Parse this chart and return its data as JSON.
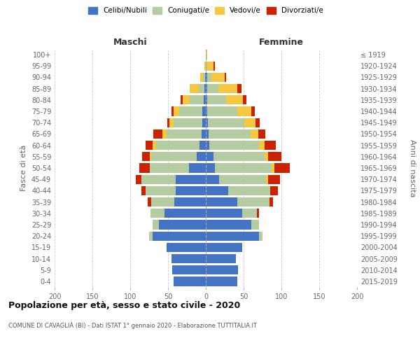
{
  "age_groups": [
    "0-4",
    "5-9",
    "10-14",
    "15-19",
    "20-24",
    "25-29",
    "30-34",
    "35-39",
    "40-44",
    "45-49",
    "50-54",
    "55-59",
    "60-64",
    "65-69",
    "70-74",
    "75-79",
    "80-84",
    "85-89",
    "90-94",
    "95-99",
    "100+"
  ],
  "birth_years": [
    "2015-2019",
    "2010-2014",
    "2005-2009",
    "2000-2004",
    "1995-1999",
    "1990-1994",
    "1985-1989",
    "1980-1984",
    "1975-1979",
    "1970-1974",
    "1965-1969",
    "1960-1964",
    "1955-1959",
    "1950-1954",
    "1945-1949",
    "1940-1944",
    "1935-1939",
    "1930-1934",
    "1925-1929",
    "1920-1924",
    "≤ 1919"
  ],
  "colors": {
    "celibi": "#4472c4",
    "coniugati": "#b5cca0",
    "vedovi": "#f5c842",
    "divorziati": "#cc2200"
  },
  "maschi": {
    "celibi": [
      43,
      44,
      45,
      52,
      70,
      62,
      55,
      42,
      40,
      40,
      22,
      12,
      8,
      6,
      5,
      5,
      3,
      2,
      1,
      0,
      0
    ],
    "coniugati": [
      0,
      0,
      0,
      0,
      5,
      8,
      18,
      30,
      40,
      45,
      52,
      60,
      58,
      46,
      38,
      30,
      18,
      7,
      3,
      0,
      0
    ],
    "vedovi": [
      0,
      0,
      0,
      0,
      0,
      0,
      0,
      0,
      0,
      0,
      0,
      2,
      4,
      5,
      5,
      8,
      10,
      12,
      3,
      2,
      0
    ],
    "divorziati": [
      0,
      0,
      0,
      0,
      0,
      0,
      0,
      5,
      5,
      8,
      14,
      10,
      10,
      12,
      3,
      2,
      2,
      0,
      0,
      0,
      0
    ]
  },
  "femmine": {
    "celibi": [
      42,
      43,
      40,
      48,
      70,
      60,
      48,
      42,
      30,
      18,
      12,
      10,
      5,
      4,
      3,
      2,
      2,
      2,
      2,
      0,
      0
    ],
    "coniugati": [
      0,
      0,
      0,
      0,
      5,
      10,
      20,
      42,
      55,
      62,
      75,
      68,
      65,
      55,
      48,
      40,
      25,
      15,
      5,
      2,
      0
    ],
    "vedovi": [
      0,
      0,
      0,
      0,
      0,
      0,
      0,
      0,
      0,
      2,
      4,
      4,
      8,
      10,
      15,
      18,
      22,
      25,
      18,
      8,
      2
    ],
    "divorziati": [
      0,
      0,
      0,
      0,
      0,
      0,
      2,
      5,
      10,
      16,
      20,
      18,
      15,
      10,
      5,
      5,
      5,
      5,
      2,
      2,
      0
    ]
  },
  "title": "Popolazione per età, sesso e stato civile - 2020",
  "subtitle": "COMUNE DI CAVAGLIÀ (BI) - Dati ISTAT 1° gennaio 2020 - Elaborazione TUTTITALIA.IT",
  "xlabel_left": "Maschi",
  "xlabel_right": "Femmine",
  "ylabel_left": "Fasce di età",
  "ylabel_right": "Anni di nascita",
  "xlim": 200,
  "legend_labels": [
    "Celibi/Nubili",
    "Coniugati/e",
    "Vedovi/e",
    "Divorziati/e"
  ],
  "background_color": "#ffffff"
}
